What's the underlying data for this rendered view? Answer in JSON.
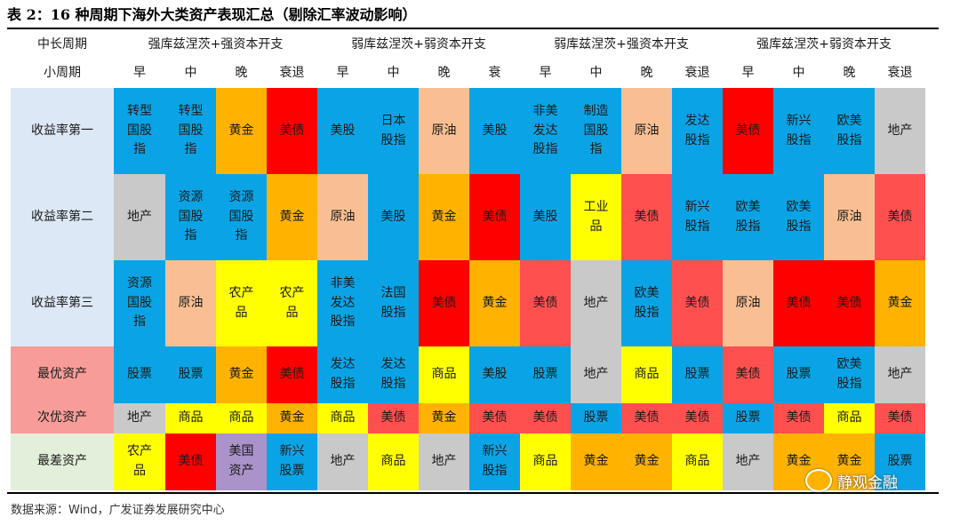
{
  "title": "表 2：16 种周期下海外大类资产表现汇总（剔除汇率波动影响）",
  "header": {
    "row1_label": "中长周期",
    "row2_label": "小周期",
    "groups": [
      "强库兹涅茨+强资本开支",
      "弱库兹涅茨+弱资本开支",
      "弱库兹涅茨+强资本开支",
      "强库兹涅茨+弱资本开支"
    ],
    "phases": [
      "早",
      "中",
      "晚",
      "衰退",
      "早",
      "中",
      "晚",
      "衰",
      "早",
      "中",
      "晚",
      "衰退",
      "早",
      "中",
      "晚",
      "衰退"
    ]
  },
  "colors": {
    "blue": "#0AA4E6",
    "yellow": "#FFFF00",
    "orange": "#FFB300",
    "red": "#FF0000",
    "salmon": "#FF5050",
    "peach": "#F9BF93",
    "gray": "#C9C9C9",
    "purple": "#A993C9",
    "header_bg": "#FFFFFF",
    "label_blue": "#DCE8F6",
    "label_pink": "#F79C98",
    "label_green": "#E2EFDA"
  },
  "rows": [
    {
      "label": "收益率第一",
      "label_bg": "label_blue",
      "cells": [
        {
          "text": "转型\n国股\n指",
          "color": "blue"
        },
        {
          "text": "转型\n国股\n指",
          "color": "blue"
        },
        {
          "text": "黄金",
          "color": "orange"
        },
        {
          "text": "美债",
          "color": "red"
        },
        {
          "text": "美股",
          "color": "blue"
        },
        {
          "text": "日本\n股指",
          "color": "blue"
        },
        {
          "text": "原油",
          "color": "peach"
        },
        {
          "text": "美股",
          "color": "blue"
        },
        {
          "text": "非美\n发达\n股指",
          "color": "blue"
        },
        {
          "text": "制造\n国股\n指",
          "color": "blue"
        },
        {
          "text": "原油",
          "color": "peach"
        },
        {
          "text": "发达\n股指",
          "color": "blue"
        },
        {
          "text": "美债",
          "color": "red"
        },
        {
          "text": "新兴\n股指",
          "color": "blue"
        },
        {
          "text": "欧美\n股指",
          "color": "blue"
        },
        {
          "text": "地产",
          "color": "gray"
        }
      ]
    },
    {
      "label": "收益率第二",
      "label_bg": "label_blue",
      "cells": [
        {
          "text": "地产",
          "color": "gray"
        },
        {
          "text": "资源\n国股\n指",
          "color": "blue"
        },
        {
          "text": "资源\n国股\n指",
          "color": "blue"
        },
        {
          "text": "黄金",
          "color": "orange"
        },
        {
          "text": "原油",
          "color": "peach"
        },
        {
          "text": "美股",
          "color": "blue"
        },
        {
          "text": "黄金",
          "color": "orange"
        },
        {
          "text": "美债",
          "color": "red"
        },
        {
          "text": "美股",
          "color": "blue"
        },
        {
          "text": "工业\n品",
          "color": "yellow"
        },
        {
          "text": "美债",
          "color": "salmon"
        },
        {
          "text": "新兴\n股指",
          "color": "blue"
        },
        {
          "text": "欧美\n股指",
          "color": "blue"
        },
        {
          "text": "欧美\n股指",
          "color": "blue"
        },
        {
          "text": "原油",
          "color": "peach"
        },
        {
          "text": "美债",
          "color": "salmon"
        }
      ]
    },
    {
      "label": "收益率第三",
      "label_bg": "label_blue",
      "cells": [
        {
          "text": "资源\n国股\n指",
          "color": "blue"
        },
        {
          "text": "原油",
          "color": "peach"
        },
        {
          "text": "农产\n品",
          "color": "yellow"
        },
        {
          "text": "农产\n品",
          "color": "yellow"
        },
        {
          "text": "非美\n发达\n股指",
          "color": "blue"
        },
        {
          "text": "法国\n股指",
          "color": "blue"
        },
        {
          "text": "美债",
          "color": "red"
        },
        {
          "text": "黄金",
          "color": "orange"
        },
        {
          "text": "美债",
          "color": "salmon"
        },
        {
          "text": "地产",
          "color": "gray"
        },
        {
          "text": "欧美\n股指",
          "color": "blue"
        },
        {
          "text": "美债",
          "color": "salmon"
        },
        {
          "text": "原油",
          "color": "peach"
        },
        {
          "text": "美债",
          "color": "red"
        },
        {
          "text": "美债",
          "color": "red"
        },
        {
          "text": "黄金",
          "color": "orange"
        }
      ]
    },
    {
      "label": "最优资产",
      "label_bg": "label_pink",
      "cells": [
        {
          "text": "股票",
          "color": "blue"
        },
        {
          "text": "股票",
          "color": "blue"
        },
        {
          "text": "黄金",
          "color": "orange"
        },
        {
          "text": "美债",
          "color": "red"
        },
        {
          "text": "发达\n股指",
          "color": "blue"
        },
        {
          "text": "发达\n股指",
          "color": "blue"
        },
        {
          "text": "商品",
          "color": "yellow"
        },
        {
          "text": "美股",
          "color": "blue"
        },
        {
          "text": "股票",
          "color": "blue"
        },
        {
          "text": "地产",
          "color": "gray"
        },
        {
          "text": "商品",
          "color": "yellow"
        },
        {
          "text": "股票",
          "color": "blue"
        },
        {
          "text": "美债",
          "color": "salmon"
        },
        {
          "text": "股票",
          "color": "blue"
        },
        {
          "text": "欧美\n股指",
          "color": "blue"
        },
        {
          "text": "地产",
          "color": "gray"
        }
      ]
    },
    {
      "label": "次优资产",
      "label_bg": "label_pink",
      "cells": [
        {
          "text": "地产",
          "color": "gray"
        },
        {
          "text": "商品",
          "color": "yellow"
        },
        {
          "text": "商品",
          "color": "yellow"
        },
        {
          "text": "黄金",
          "color": "orange"
        },
        {
          "text": "商品",
          "color": "yellow"
        },
        {
          "text": "美债",
          "color": "salmon"
        },
        {
          "text": "黄金",
          "color": "orange"
        },
        {
          "text": "美债",
          "color": "salmon"
        },
        {
          "text": "美债",
          "color": "salmon"
        },
        {
          "text": "股票",
          "color": "blue"
        },
        {
          "text": "美债",
          "color": "salmon"
        },
        {
          "text": "美债",
          "color": "salmon"
        },
        {
          "text": "股票",
          "color": "blue"
        },
        {
          "text": "美债",
          "color": "salmon"
        },
        {
          "text": "商品",
          "color": "yellow"
        },
        {
          "text": "美债",
          "color": "salmon"
        }
      ]
    },
    {
      "label": "最差资产",
      "label_bg": "label_green",
      "cells": [
        {
          "text": "农产\n品",
          "color": "yellow"
        },
        {
          "text": "美债",
          "color": "red"
        },
        {
          "text": "美国\n资产",
          "color": "purple"
        },
        {
          "text": "新兴\n股票",
          "color": "blue"
        },
        {
          "text": "地产",
          "color": "gray"
        },
        {
          "text": "商品",
          "color": "yellow"
        },
        {
          "text": "地产",
          "color": "gray"
        },
        {
          "text": "新兴\n股指",
          "color": "blue"
        },
        {
          "text": "商品",
          "color": "yellow"
        },
        {
          "text": "黄金",
          "color": "orange"
        },
        {
          "text": "黄金",
          "color": "orange"
        },
        {
          "text": "商品",
          "color": "yellow"
        },
        {
          "text": "地产",
          "color": "gray"
        },
        {
          "text": "黄金",
          "color": "orange"
        },
        {
          "text": "黄金",
          "color": "orange"
        },
        {
          "text": "股票",
          "color": "blue"
        }
      ]
    }
  ],
  "source": "数据来源：Wind，广发证券发展研究中心",
  "watermark": "静观金融"
}
